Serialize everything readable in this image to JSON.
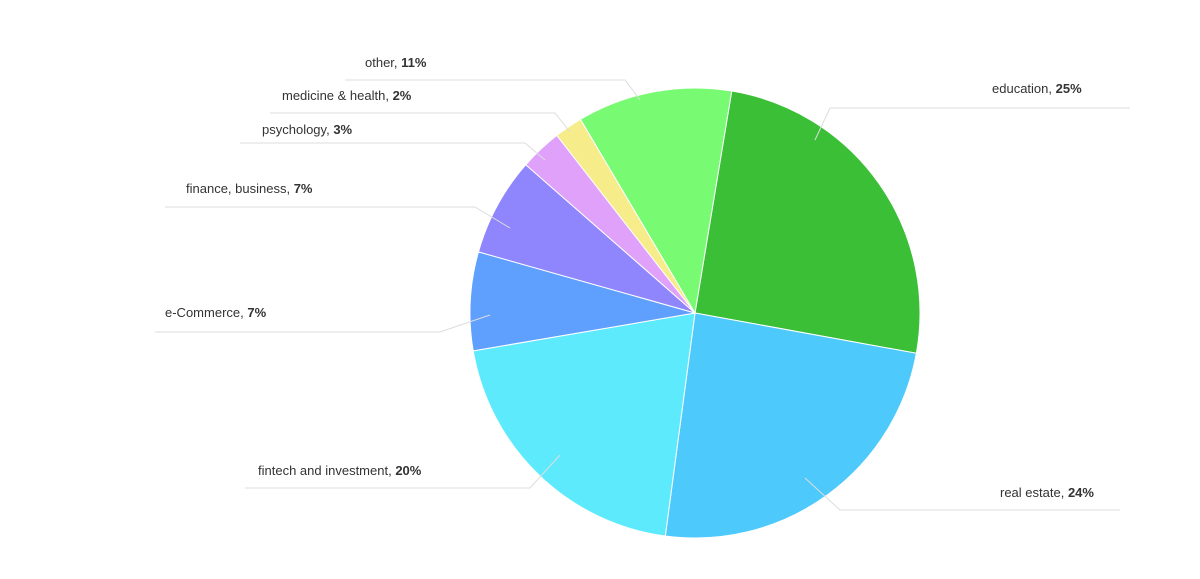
{
  "chart_data": {
    "type": "pie",
    "categories": [
      "education",
      "real estate",
      "fintech and investment",
      "e-Commerce",
      "finance, business",
      "psychology",
      "medicine & health",
      "other"
    ],
    "values": [
      25,
      24,
      20,
      7,
      7,
      3,
      2,
      11
    ],
    "value_labels": [
      "25%",
      "24%",
      "20%",
      "7%",
      "7%",
      "3%",
      "2%",
      "11%"
    ],
    "label_separator": ", ",
    "colors": [
      "#3abf36",
      "#4dc9fc",
      "#5eeafd",
      "#5f9ffd",
      "#8f85fd",
      "#e0a1fb",
      "#f7ec8a",
      "#78fb72"
    ]
  }
}
